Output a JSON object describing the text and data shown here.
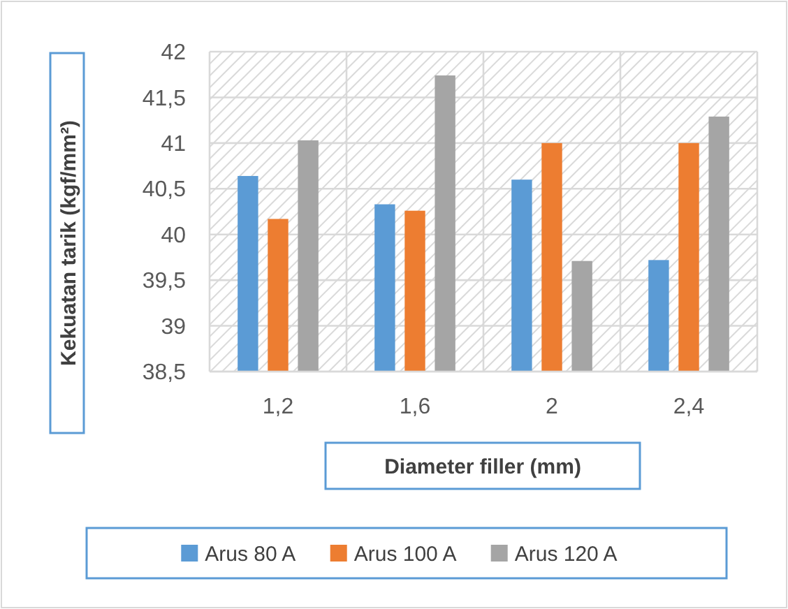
{
  "chart_data": {
    "type": "bar",
    "xlabel": "Diameter filler (mm)",
    "ylabel": "Kekuatan tarik (kgf/mm²)",
    "categories": [
      "1,2",
      "1,6",
      "2",
      "2,4"
    ],
    "series": [
      {
        "name": "Arus 80 A",
        "color": "#5b9bd5",
        "values": [
          40.64,
          40.33,
          40.6,
          39.72
        ]
      },
      {
        "name": "Arus 100 A",
        "color": "#ed7d31",
        "values": [
          40.17,
          40.26,
          41.0,
          41.0
        ]
      },
      {
        "name": "Arus 120 A",
        "color": "#a5a5a5",
        "values": [
          41.03,
          41.74,
          39.71,
          41.29
        ]
      }
    ],
    "ylim": [
      38.5,
      42
    ],
    "yticks": [
      {
        "value": 38.5,
        "label": "38,5"
      },
      39,
      {
        "value": 39.5,
        "label": "39,5"
      },
      40,
      {
        "value": 40.5,
        "label": "40,5"
      },
      41,
      {
        "value": 41.5,
        "label": "41,5"
      },
      42
    ],
    "grid": true,
    "legend": "bottom"
  }
}
